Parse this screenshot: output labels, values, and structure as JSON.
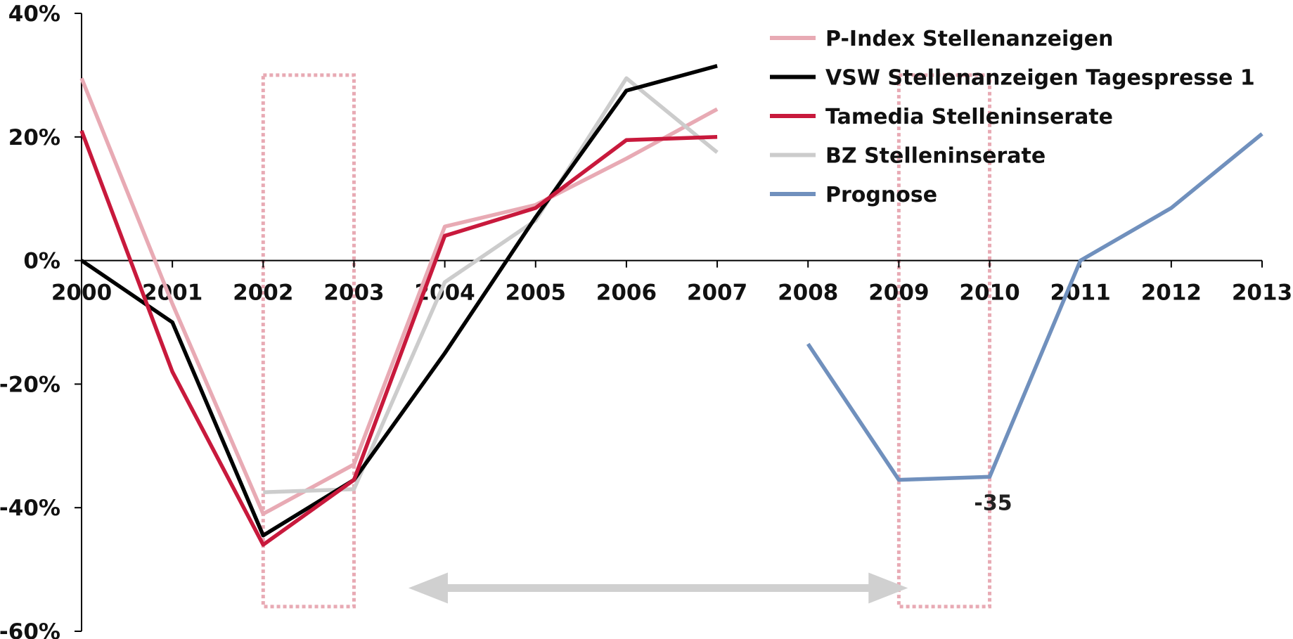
{
  "chart_data": {
    "type": "line",
    "title": "",
    "xlabel": "",
    "ylabel": "",
    "categories": [
      "2000",
      "2001",
      "2002",
      "2003",
      "2004",
      "2005",
      "2006",
      "2007",
      "2008",
      "2009",
      "2010",
      "2011",
      "2012",
      "2013"
    ],
    "ylim": [
      -60,
      40
    ],
    "y_ticks": [
      40,
      20,
      0,
      -20,
      -40,
      -60
    ],
    "y_tick_labels": [
      "40%",
      "20%",
      "0%",
      "-20%",
      "-40%",
      "-60%"
    ],
    "grid": false,
    "legend_position": "top-right",
    "series": [
      {
        "name": "P-Index Stellenanzeigen",
        "color": "#e8aab4",
        "values": [
          29.5,
          -7,
          -41,
          -33,
          5.5,
          9,
          16.5,
          24.5,
          null,
          null,
          null,
          null,
          null,
          null
        ]
      },
      {
        "name": "VSW Stellenanzeigen Tagespresse 1",
        "color": "#000000",
        "values": [
          0,
          -10,
          -44.5,
          -35.5,
          -15,
          7,
          27.5,
          31.5,
          null,
          null,
          null,
          null,
          null,
          null
        ]
      },
      {
        "name": "Tamedia Stelleninserate",
        "color": "#c8193c",
        "values": [
          21,
          -18,
          -46,
          -35.5,
          4,
          8.5,
          19.5,
          20,
          null,
          null,
          null,
          null,
          null,
          null
        ]
      },
      {
        "name": "BZ Stelleninserate",
        "color": "#cccccc",
        "values": [
          null,
          null,
          -37.5,
          -37,
          -3.5,
          6.5,
          29.5,
          17.5,
          null,
          null,
          null,
          null,
          null,
          null
        ]
      },
      {
        "name": "Prognose",
        "color": "#7090bd",
        "values": [
          null,
          null,
          null,
          null,
          null,
          null,
          null,
          null,
          -13.5,
          -35.5,
          -35,
          0,
          8.5,
          20.5
        ]
      }
    ],
    "annotations": [
      {
        "text": "-35",
        "x": "2010",
        "y": -35
      }
    ],
    "highlight_boxes": [
      {
        "x_from": "2002",
        "x_to": "2003",
        "y_from": -56,
        "y_to": 30,
        "color": "#e8aab4"
      },
      {
        "x_from": "2009",
        "x_to": "2010",
        "y_from": -56,
        "y_to": 30,
        "color": "#e8aab4"
      }
    ],
    "span_arrow": {
      "x_from": 2003.6,
      "x_to": 2009.1,
      "y": -53,
      "color": "#d0d0d0"
    }
  }
}
